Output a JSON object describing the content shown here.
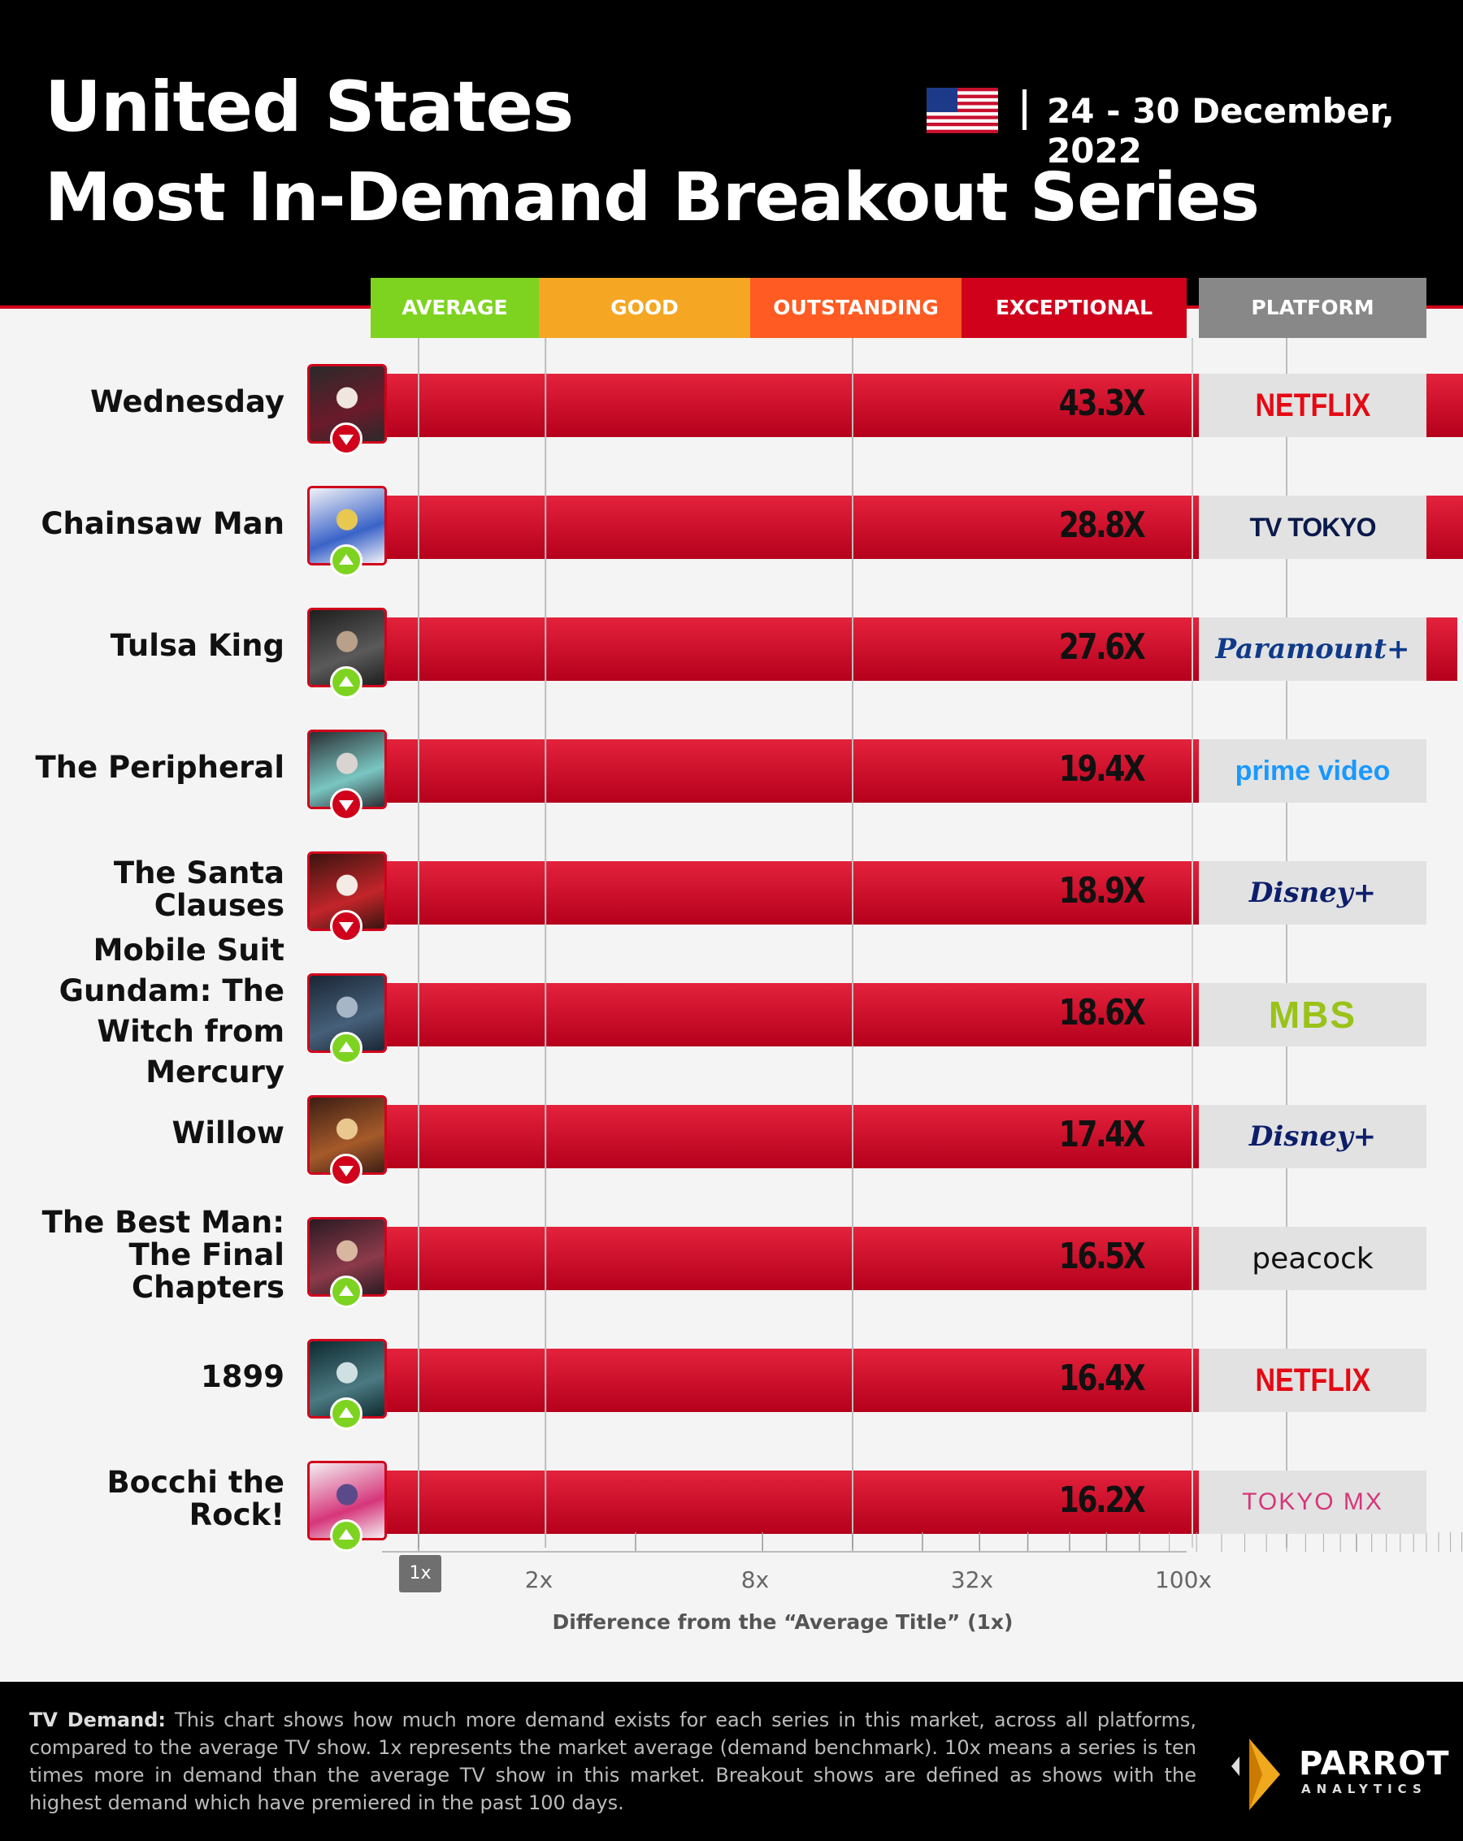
{
  "header": {
    "title_line1": "United States",
    "title_line2": "Most In-Demand Breakout Series",
    "date_range": "24 - 30 December, 2022",
    "flag_icon": "us-flag-icon"
  },
  "categories": [
    {
      "label": "AVERAGE",
      "color": "#7ed321"
    },
    {
      "label": "GOOD",
      "color": "#f5a623"
    },
    {
      "label": "OUTSTANDING",
      "color": "#ff5b22"
    },
    {
      "label": "EXCEPTIONAL",
      "color": "#d0021b"
    }
  ],
  "platform_header": "PLATFORM",
  "chart_data": {
    "type": "bar",
    "orientation": "horizontal",
    "scale": "log",
    "title": "Most In-Demand Breakout Series",
    "xlabel": "Difference from the “Average Title” (1x)",
    "xlim": [
      1,
      100
    ],
    "x_ticks": [
      "1x",
      "2x",
      "8x",
      "32x",
      "100x"
    ],
    "bar_color": "#d0021b",
    "categories": [
      "Wednesday",
      "Chainsaw Man",
      "Tulsa King",
      "The Peripheral",
      "The Santa Clauses",
      "Mobile Suit Gundam: The Witch from Mercury",
      "Willow",
      "The Best Man: The Final Chapters",
      "1899",
      "Bocchi the Rock!"
    ],
    "values": [
      43.3,
      28.8,
      27.6,
      19.4,
      18.9,
      18.6,
      17.4,
      16.5,
      16.4,
      16.2
    ],
    "value_labels": [
      "43.3X",
      "28.8X",
      "27.6X",
      "19.4X",
      "18.9X",
      "18.6X",
      "17.4X",
      "16.5X",
      "16.4X",
      "16.2X"
    ],
    "trend": [
      "down",
      "up",
      "up",
      "down",
      "down",
      "up",
      "down",
      "up",
      "up",
      "up"
    ],
    "platforms": [
      "NETFLIX",
      "TV TOKYO",
      "Paramount+",
      "prime video",
      "Disney+",
      "MBS",
      "Disney+",
      "peacock",
      "NETFLIX",
      "TOKYO MX"
    ],
    "label_lines": [
      [
        "Wednesday"
      ],
      [
        "Chainsaw Man"
      ],
      [
        "Tulsa King"
      ],
      [
        "The Peripheral"
      ],
      [
        "The Santa",
        "Clauses"
      ],
      [
        "Mobile Suit",
        "Gundam: The",
        "Witch from",
        "Mercury"
      ],
      [
        "Willow"
      ],
      [
        "The Best Man:",
        "The Final",
        "Chapters"
      ],
      [
        "1899"
      ],
      [
        "Bocchi the",
        "Rock!"
      ]
    ]
  },
  "footer": {
    "lead": "TV Demand:",
    "text": "This chart shows how much more demand exists for each series in this market, across all platforms, compared to the average TV show. 1x represents the market average (demand benchmark). 10x means a series is ten times more in demand than the average TV show in this market.  Breakout shows are defined as shows with the highest demand which have premiered in the past 100 days.",
    "brand": "PARROT",
    "brand_sub": "ANALYTICS"
  }
}
